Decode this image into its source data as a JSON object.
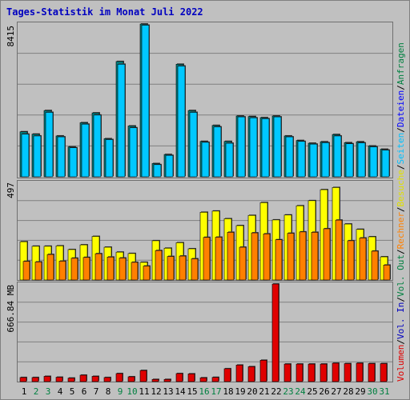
{
  "chart_data": {
    "type": "bar",
    "title": "Tages-Statistik im Monat Juli 2022",
    "categories": [
      "1",
      "2",
      "3",
      "4",
      "5",
      "6",
      "7",
      "8",
      "9",
      "10",
      "11",
      "12",
      "13",
      "14",
      "15",
      "16",
      "17",
      "18",
      "19",
      "20",
      "21",
      "22",
      "23",
      "24",
      "25",
      "26",
      "27",
      "28",
      "29",
      "30",
      "31"
    ],
    "weekend_days": [
      "2",
      "3",
      "9",
      "10",
      "16",
      "17",
      "23",
      "24",
      "30",
      "31"
    ],
    "panel_top": {
      "max_label": "8415",
      "ylim": [
        0,
        8415
      ],
      "series": [
        {
          "name": "Anfragen",
          "color": "#008040",
          "values": [
            2480,
            2350,
            3650,
            2250,
            1650,
            2980,
            3520,
            2100,
            6350,
            2800,
            8415,
            730,
            1230,
            6200,
            3650,
            1950,
            2830,
            1950,
            3350,
            3320,
            3260,
            3350,
            2250,
            2000,
            1850,
            1930,
            2330,
            1880,
            1930,
            1700,
            1520
          ]
        },
        {
          "name": "Dateien",
          "color": "#0000ff",
          "values": [
            2350,
            2250,
            3550,
            2200,
            1600,
            2900,
            3400,
            2050,
            6200,
            2700,
            8350,
            670,
            1180,
            6100,
            3550,
            1900,
            2750,
            1850,
            3300,
            3250,
            3200,
            3300,
            2200,
            1950,
            1800,
            1880,
            2250,
            1820,
            1870,
            1650,
            1470
          ]
        }
      ]
    },
    "panel_mid": {
      "max_label": "497",
      "ylim": [
        0,
        497
      ],
      "series": [
        {
          "name": "Seiten",
          "color": "#00c0ff",
          "values": []
        },
        {
          "name": "Besuche",
          "color": "#ffff00",
          "values": [
            195,
            172,
            172,
            174,
            155,
            179,
            222,
            167,
            142,
            135,
            90,
            200,
            162,
            190,
            159,
            345,
            351,
            312,
            277,
            329,
            394,
            306,
            331,
            378,
            404,
            460,
            471,
            285,
            258,
            220,
            118
          ]
        },
        {
          "name": "Rechner",
          "color": "#ff8000",
          "values": [
            95,
            92,
            130,
            96,
            111,
            115,
            134,
            117,
            112,
            90,
            71,
            150,
            120,
            122,
            108,
            217,
            218,
            243,
            167,
            240,
            235,
            205,
            238,
            245,
            243,
            261,
            305,
            200,
            214,
            147,
            76
          ]
        }
      ]
    },
    "panel_bot": {
      "max_label": "666.84 MB",
      "ylim": [
        0,
        666.84
      ],
      "series": [
        {
          "name": "Vol. In",
          "color": "#0000c0",
          "values": []
        },
        {
          "name": "Vol. Out",
          "color": "#008040",
          "values": []
        },
        {
          "name": "Volumen",
          "color": "#e00000",
          "values": [
            28,
            28,
            36,
            30,
            24,
            44,
            36,
            28,
            55,
            33,
            76,
            15,
            15,
            55,
            53,
            26,
            29,
            88,
            113,
            102,
            146,
            666.84,
            120,
            120,
            120,
            120,
            126,
            123,
            126,
            123,
            123
          ]
        }
      ]
    },
    "legend_right": [
      "Anfragen",
      "/",
      "Dateien",
      "/",
      "Seiten",
      "/",
      "Besuche",
      "/",
      "Rechner",
      "/",
      "Vol. Out",
      "/",
      "Vol. In",
      "/",
      "Volumen"
    ],
    "colors": {
      "background": "#c0c0c0",
      "panel_border": "#707070",
      "gridline": "#808080",
      "title": "#0000c0",
      "day_label": "#000000",
      "weekend_label": "#008040",
      "bar_outline": "#000000",
      "bar_shadow": "#404040"
    }
  }
}
